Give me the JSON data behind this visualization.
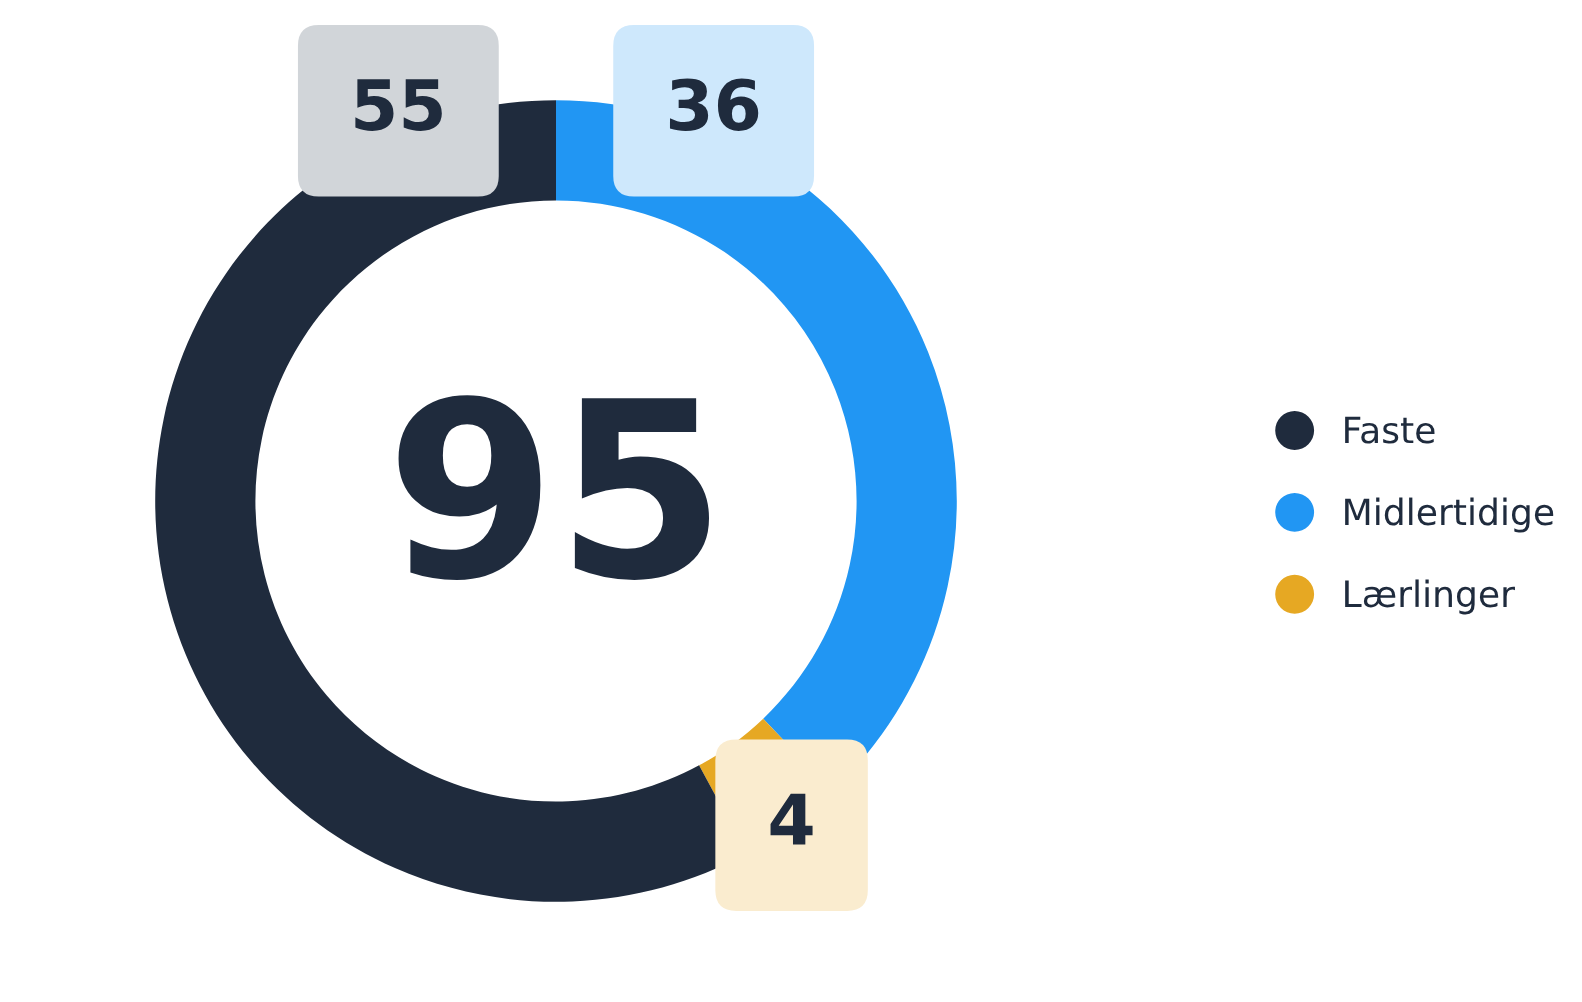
{
  "chart_data": {
    "type": "donut",
    "categories": [
      "Faste",
      "Midlertidige",
      "Lærlinger"
    ],
    "values": [
      55,
      36,
      4
    ],
    "colors": [
      "#1f2b3d",
      "#2196f3",
      "#e6a823"
    ],
    "data_labels": true,
    "annotations": [
      "95"
    ],
    "legend": "right"
  }
}
